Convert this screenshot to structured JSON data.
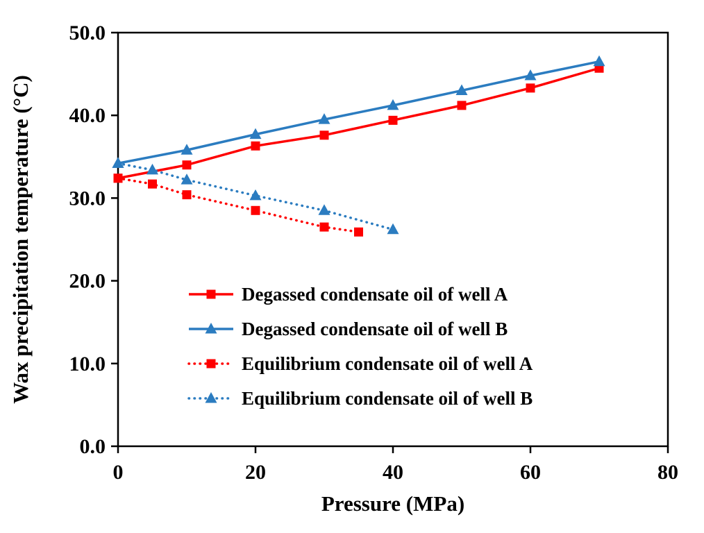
{
  "chart_data": {
    "type": "line",
    "title": "",
    "xlabel": "Pressure (MPa)",
    "ylabel": "Wax precipitation temperature (°C)",
    "xlim": [
      0,
      80
    ],
    "ylim": [
      0,
      50
    ],
    "xticks": [
      0,
      20,
      40,
      60,
      80
    ],
    "xtick_labels": [
      "0",
      "20",
      "40",
      "60",
      "80"
    ],
    "yticks": [
      0,
      10,
      20,
      30,
      40,
      50
    ],
    "ytick_labels": [
      "0.0",
      "10.0",
      "20.0",
      "30.0",
      "40.0",
      "50.0"
    ],
    "grid": false,
    "background": "#ffffff",
    "axis_color": "#000000",
    "legend_position": "inside-lower-left",
    "series": [
      {
        "name": "Degassed condensate oil of well A",
        "color": "#fe0000",
        "line_style": "solid",
        "marker": "square",
        "x": [
          0,
          10,
          20,
          30,
          40,
          50,
          60,
          70
        ],
        "y": [
          32.4,
          34.0,
          36.3,
          37.6,
          39.4,
          41.2,
          43.3,
          45.7
        ]
      },
      {
        "name": "Degassed condensate oil of well B",
        "color": "#2b7cc0",
        "line_style": "solid",
        "marker": "triangle",
        "x": [
          0,
          10,
          20,
          30,
          40,
          50,
          60,
          70
        ],
        "y": [
          34.2,
          35.8,
          37.7,
          39.5,
          41.2,
          43.0,
          44.8,
          46.5
        ]
      },
      {
        "name": "Equilibrium condensate oil of well A",
        "color": "#fe0000",
        "line_style": "dotted",
        "marker": "square",
        "x": [
          0,
          5,
          10,
          20,
          30,
          35
        ],
        "y": [
          32.4,
          31.7,
          30.4,
          28.5,
          26.5,
          25.9
        ]
      },
      {
        "name": "Equilibrium condensate oil of well B",
        "color": "#2b7cc0",
        "line_style": "dotted",
        "marker": "triangle",
        "x": [
          0,
          5,
          10,
          20,
          30,
          40
        ],
        "y": [
          34.2,
          33.4,
          32.2,
          30.3,
          28.5,
          26.2
        ]
      }
    ]
  }
}
